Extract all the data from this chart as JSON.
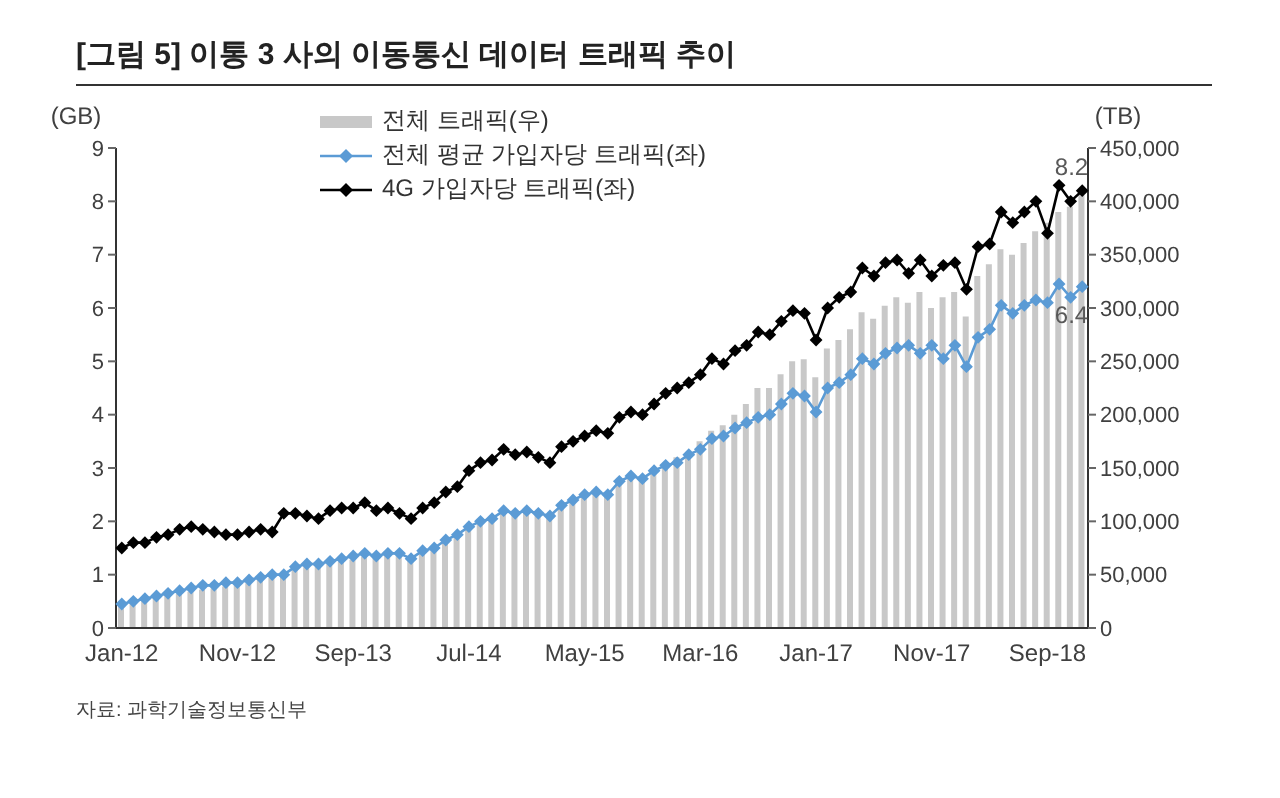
{
  "chart_data": {
    "type": "line",
    "title": "[그림 5] 이통 3 사의 이동통신 데이터 트래픽 추이",
    "categories": [
      "Jan-12",
      null,
      null,
      null,
      null,
      null,
      null,
      null,
      null,
      null,
      "Nov-12",
      null,
      null,
      null,
      null,
      null,
      null,
      null,
      null,
      null,
      "Sep-13",
      null,
      null,
      null,
      null,
      null,
      null,
      null,
      null,
      null,
      "Jul-14",
      null,
      null,
      null,
      null,
      null,
      null,
      null,
      null,
      null,
      "May-15",
      null,
      null,
      null,
      null,
      null,
      null,
      null,
      null,
      null,
      "Mar-16",
      null,
      null,
      null,
      null,
      null,
      null,
      null,
      null,
      null,
      "Jan-17",
      null,
      null,
      null,
      null,
      null,
      null,
      null,
      null,
      null,
      "Nov-17",
      null,
      null,
      null,
      null,
      null,
      null,
      null,
      null,
      null,
      "Sep-18",
      null,
      null,
      null
    ],
    "series": [
      {
        "name": "전체 트래픽(우)",
        "type": "bar",
        "axis": "y2",
        "color": "#c8c8c8",
        "values": [
          22000,
          24000,
          26000,
          28000,
          30000,
          32000,
          34000,
          36000,
          37000,
          39000,
          40000,
          42000,
          45000,
          47000,
          49000,
          55000,
          57000,
          58000,
          60000,
          62000,
          64000,
          67000,
          66000,
          68000,
          69000,
          65000,
          71000,
          74000,
          80000,
          85000,
          92000,
          98000,
          100000,
          108000,
          106000,
          108000,
          106000,
          104000,
          112000,
          118000,
          124000,
          128000,
          126000,
          138000,
          143000,
          142000,
          150000,
          155000,
          160000,
          165000,
          175000,
          185000,
          190000,
          200000,
          210000,
          225000,
          225000,
          238000,
          250000,
          252000,
          235000,
          262000,
          270000,
          280000,
          296000,
          290000,
          302000,
          310000,
          305000,
          315000,
          300000,
          310000,
          315000,
          292000,
          330000,
          341000,
          355000,
          350000,
          361000,
          372000,
          380000,
          390000,
          395000,
          406000
        ]
      },
      {
        "name": "전체 평균 가입자당 트래픽(좌)",
        "color": "#5b9bd5",
        "values": [
          0.45,
          0.5,
          0.55,
          0.6,
          0.65,
          0.7,
          0.75,
          0.8,
          0.8,
          0.85,
          0.85,
          0.9,
          0.95,
          1.0,
          1.0,
          1.15,
          1.2,
          1.2,
          1.25,
          1.3,
          1.35,
          1.4,
          1.35,
          1.4,
          1.4,
          1.3,
          1.45,
          1.5,
          1.65,
          1.75,
          1.9,
          2.0,
          2.05,
          2.2,
          2.15,
          2.2,
          2.15,
          2.1,
          2.3,
          2.4,
          2.5,
          2.55,
          2.5,
          2.75,
          2.85,
          2.8,
          2.95,
          3.05,
          3.1,
          3.25,
          3.35,
          3.55,
          3.6,
          3.75,
          3.85,
          3.95,
          4.0,
          4.2,
          4.4,
          4.35,
          4.05,
          4.5,
          4.6,
          4.75,
          5.05,
          4.95,
          5.15,
          5.25,
          5.3,
          5.15,
          5.3,
          5.05,
          5.3,
          4.9,
          5.45,
          5.6,
          6.05,
          5.9,
          6.05,
          6.15,
          6.1,
          6.45,
          6.2,
          6.4
        ],
        "value_labels": [
          null,
          null,
          null,
          null,
          null,
          null,
          null,
          null,
          null,
          null,
          null,
          null,
          null,
          null,
          null,
          null,
          null,
          null,
          null,
          null,
          null,
          null,
          null,
          null,
          null,
          null,
          null,
          null,
          null,
          null,
          null,
          null,
          null,
          null,
          null,
          null,
          null,
          null,
          null,
          null,
          null,
          null,
          null,
          null,
          null,
          null,
          null,
          null,
          null,
          null,
          null,
          null,
          null,
          null,
          null,
          null,
          null,
          null,
          null,
          null,
          null,
          null,
          null,
          null,
          null,
          null,
          null,
          null,
          null,
          null,
          null,
          null,
          null,
          null,
          null,
          null,
          null,
          null,
          null,
          null,
          null,
          null,
          null,
          "6.4"
        ]
      },
      {
        "name": "4G 가입자당 트래픽(좌)",
        "color": "#000000",
        "values": [
          1.5,
          1.6,
          1.6,
          1.7,
          1.75,
          1.85,
          1.9,
          1.85,
          1.8,
          1.75,
          1.75,
          1.8,
          1.85,
          1.8,
          2.15,
          2.15,
          2.1,
          2.05,
          2.2,
          2.25,
          2.25,
          2.35,
          2.2,
          2.25,
          2.15,
          2.05,
          2.25,
          2.35,
          2.55,
          2.65,
          2.95,
          3.1,
          3.15,
          3.35,
          3.25,
          3.3,
          3.2,
          3.1,
          3.4,
          3.5,
          3.6,
          3.7,
          3.65,
          3.95,
          4.05,
          4.0,
          4.2,
          4.4,
          4.5,
          4.6,
          4.75,
          5.05,
          4.95,
          5.2,
          5.3,
          5.55,
          5.5,
          5.75,
          5.95,
          5.9,
          5.4,
          6.0,
          6.2,
          6.3,
          6.75,
          6.6,
          6.85,
          6.9,
          6.65,
          6.9,
          6.6,
          6.8,
          6.85,
          6.35,
          7.15,
          7.2,
          7.8,
          7.6,
          7.8,
          8.0,
          7.4,
          8.3,
          8.0,
          8.2
        ],
        "value_labels": [
          null,
          null,
          null,
          null,
          null,
          null,
          null,
          null,
          null,
          null,
          null,
          null,
          null,
          null,
          null,
          null,
          null,
          null,
          null,
          null,
          null,
          null,
          null,
          null,
          null,
          null,
          null,
          null,
          null,
          null,
          null,
          null,
          null,
          null,
          null,
          null,
          null,
          null,
          null,
          null,
          null,
          null,
          null,
          null,
          null,
          null,
          null,
          null,
          null,
          null,
          null,
          null,
          null,
          null,
          null,
          null,
          null,
          null,
          null,
          null,
          null,
          null,
          null,
          null,
          null,
          null,
          null,
          null,
          null,
          null,
          null,
          null,
          null,
          null,
          null,
          null,
          null,
          null,
          null,
          null,
          null,
          null,
          null,
          "8.2"
        ]
      }
    ],
    "ylabel": "(GB)",
    "y2label": "(TB)",
    "ylim": [
      0,
      9
    ],
    "yticks": [
      0,
      1,
      2,
      3,
      4,
      5,
      6,
      7,
      8,
      9
    ],
    "y2lim": [
      0,
      450000
    ],
    "y2ticks": [
      {
        "value": 0,
        "label": "0"
      },
      {
        "value": 50000,
        "label": "50,000"
      },
      {
        "value": 100000,
        "label": "100,000"
      },
      {
        "value": 150000,
        "label": "150,000"
      },
      {
        "value": 200000,
        "label": "200,000"
      },
      {
        "value": 250000,
        "label": "250,000"
      },
      {
        "value": 300000,
        "label": "300,000"
      },
      {
        "value": 350000,
        "label": "350,000"
      },
      {
        "value": 400000,
        "label": "400,000"
      },
      {
        "value": 450000,
        "label": "450,000"
      }
    ],
    "marker": "diamond",
    "line_style": "solid",
    "grid": false,
    "legend": "top left",
    "annotations": [
      "자료: 과학기술정보통신부"
    ]
  }
}
